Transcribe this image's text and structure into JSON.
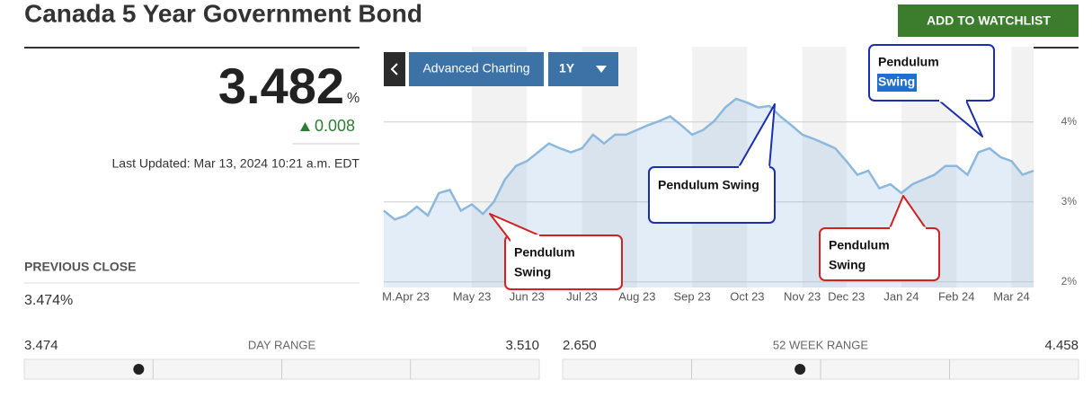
{
  "header": {
    "title": "Canada 5 Year Government Bond",
    "button": "ADD TO WATCHLIST"
  },
  "quote": {
    "price": "3.482",
    "unit": "%",
    "change": "0.008",
    "updated": "Last Updated: Mar 13, 2024 10:21 a.m. EDT",
    "previous_close_label": "PREVIOUS CLOSE",
    "previous_close": "3.474%"
  },
  "ranges": [
    {
      "low": "3.474",
      "label": "DAY RANGE",
      "high": "3.510"
    },
    {
      "low": "2.650",
      "label": "52 WEEK RANGE",
      "high": "4.458"
    }
  ],
  "toolbar": {
    "advanced": "Advanced Charting",
    "period": "1Y"
  },
  "chart_data": {
    "type": "line",
    "categories": [
      null,
      null,
      "M.Apr 23",
      null,
      null,
      null,
      null,
      null,
      "May 23",
      null,
      null,
      null,
      null,
      "Jun 23",
      null,
      null,
      null,
      null,
      "Jul 23",
      null,
      null,
      null,
      null,
      "Aug 23",
      null,
      null,
      null,
      null,
      "Sep 23",
      null,
      null,
      null,
      null,
      "Oct 23",
      null,
      null,
      null,
      null,
      "Nov 23",
      null,
      null,
      null,
      "Dec 23",
      null,
      null,
      null,
      null,
      "Jan 24",
      null,
      null,
      null,
      null,
      "Feb 24",
      null,
      null,
      null,
      null,
      "Mar 24",
      null,
      null
    ],
    "values": [
      2.89,
      2.78,
      2.83,
      2.94,
      2.83,
      3.11,
      3.15,
      2.89,
      2.97,
      2.85,
      3.0,
      3.28,
      3.45,
      3.51,
      3.62,
      3.73,
      3.67,
      3.62,
      3.67,
      3.84,
      3.73,
      3.84,
      3.84,
      3.9,
      3.96,
      4.01,
      4.07,
      3.96,
      3.84,
      3.9,
      4.01,
      4.18,
      4.29,
      4.24,
      4.18,
      4.2,
      4.07,
      3.96,
      3.84,
      3.79,
      3.73,
      3.67,
      3.51,
      3.34,
      3.39,
      3.17,
      3.22,
      3.11,
      3.22,
      3.28,
      3.34,
      3.45,
      3.45,
      3.34,
      3.62,
      3.67,
      3.56,
      3.51,
      3.34,
      3.39
    ],
    "color": "#8cb8de",
    "ylim": [
      1.93,
      4.94
    ],
    "yticks": [
      {
        "value": 2,
        "label": "2%"
      },
      {
        "value": 3,
        "label": "3%"
      },
      {
        "value": 4,
        "label": "4%"
      }
    ],
    "grid": true,
    "annotations": [
      {
        "lines": [
          "Pendulum",
          "Swing"
        ],
        "color": "#d42020"
      },
      {
        "lines": [
          "Pendulum Swing"
        ],
        "color": "#1a2fb0"
      },
      {
        "lines": [
          "Pendulum",
          "Swing"
        ],
        "color": "#d42020"
      },
      {
        "lines": [
          "Pendulum",
          "Swing"
        ],
        "color": "#1a2fb0"
      }
    ]
  }
}
